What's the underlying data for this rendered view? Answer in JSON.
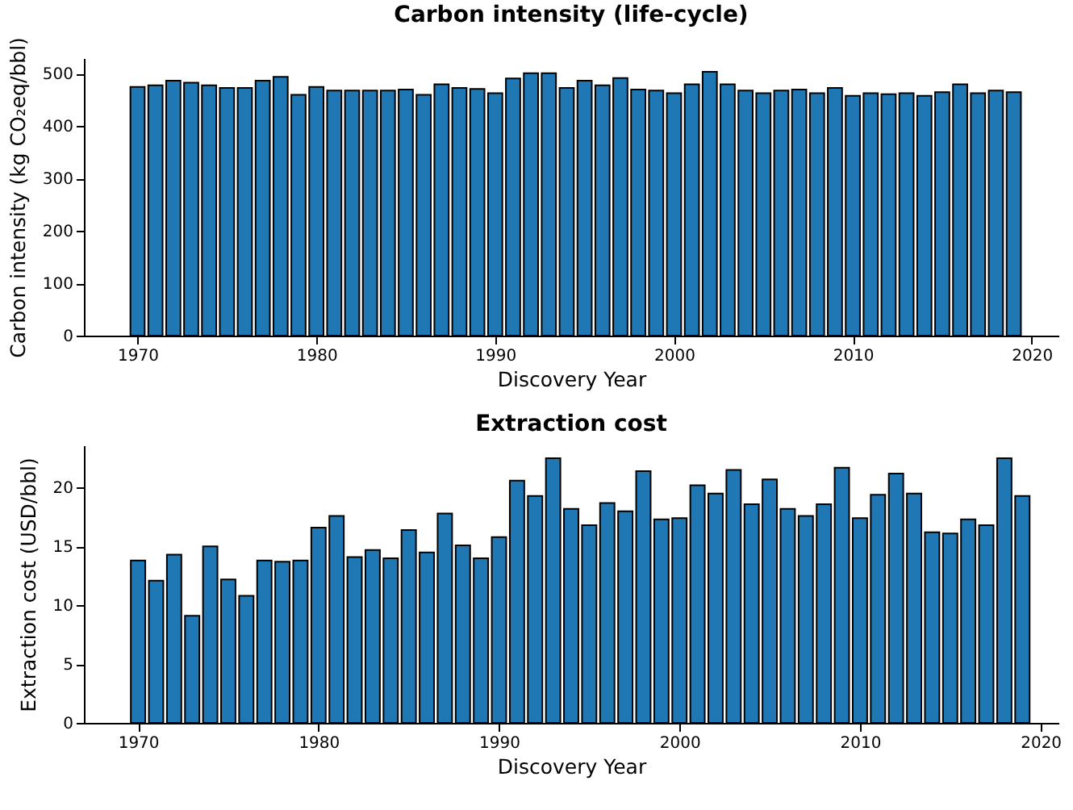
{
  "chart_data": [
    {
      "type": "bar",
      "title": "Carbon intensity (life-cycle)",
      "xlabel": "Discovery Year",
      "ylabel": "Carbon intensity (kg CO₂eq/bbl)",
      "color": "#1f77b4",
      "x": [
        1970,
        1971,
        1972,
        1973,
        1974,
        1975,
        1976,
        1977,
        1978,
        1979,
        1980,
        1981,
        1982,
        1983,
        1984,
        1985,
        1986,
        1987,
        1988,
        1989,
        1990,
        1991,
        1992,
        1993,
        1994,
        1995,
        1996,
        1997,
        1998,
        1999,
        2000,
        2001,
        2002,
        2003,
        2004,
        2005,
        2006,
        2007,
        2008,
        2009,
        2010,
        2011,
        2012,
        2013,
        2014,
        2015,
        2016,
        2017,
        2018,
        2019
      ],
      "values": [
        475,
        478,
        487,
        483,
        478,
        473,
        473,
        487,
        494,
        460,
        475,
        468,
        468,
        468,
        468,
        470,
        460,
        480,
        473,
        471,
        463,
        491,
        501,
        501,
        473,
        487,
        478,
        492,
        470,
        468,
        463,
        480,
        504,
        480,
        468,
        463,
        468,
        470,
        463,
        473,
        458,
        463,
        461,
        463,
        458,
        465,
        480,
        463,
        468,
        465
      ],
      "xlim": [
        1967,
        2021.5
      ],
      "xticks": [
        1970,
        1980,
        1990,
        2000,
        2010,
        2020
      ],
      "ylim": [
        0,
        530
      ],
      "yticks": [
        0,
        100,
        200,
        300,
        400,
        500
      ]
    },
    {
      "type": "bar",
      "title": "Extraction cost",
      "xlabel": "Discovery Year",
      "ylabel": "Extraction cost (USD/bbl)",
      "color": "#1f77b4",
      "x": [
        1970,
        1971,
        1972,
        1973,
        1974,
        1975,
        1976,
        1977,
        1978,
        1979,
        1980,
        1981,
        1982,
        1983,
        1984,
        1985,
        1986,
        1987,
        1988,
        1989,
        1990,
        1991,
        1992,
        1993,
        1994,
        1995,
        1996,
        1997,
        1998,
        1999,
        2000,
        2001,
        2002,
        2003,
        2004,
        2005,
        2006,
        2007,
        2008,
        2009,
        2010,
        2011,
        2012,
        2013,
        2014,
        2015,
        2016,
        2017,
        2018,
        2019
      ],
      "values": [
        13.8,
        12.1,
        14.3,
        9.1,
        15.0,
        12.2,
        10.8,
        13.8,
        13.7,
        13.8,
        16.6,
        17.6,
        14.1,
        14.7,
        14.0,
        16.4,
        14.5,
        17.8,
        15.1,
        14.0,
        15.8,
        20.6,
        19.3,
        22.5,
        18.2,
        16.8,
        18.7,
        18.0,
        21.4,
        17.3,
        17.4,
        20.2,
        19.5,
        21.5,
        18.6,
        20.7,
        18.2,
        17.6,
        18.6,
        21.7,
        17.4,
        19.4,
        21.2,
        19.5,
        16.2,
        16.1,
        17.3,
        16.8,
        22.5,
        19.3
      ],
      "xlim": [
        1967,
        2021
      ],
      "xticks": [
        1970,
        1980,
        1990,
        2000,
        2010,
        2020
      ],
      "ylim": [
        0,
        23.6
      ],
      "yticks": [
        0,
        5,
        10,
        15,
        20
      ]
    }
  ]
}
